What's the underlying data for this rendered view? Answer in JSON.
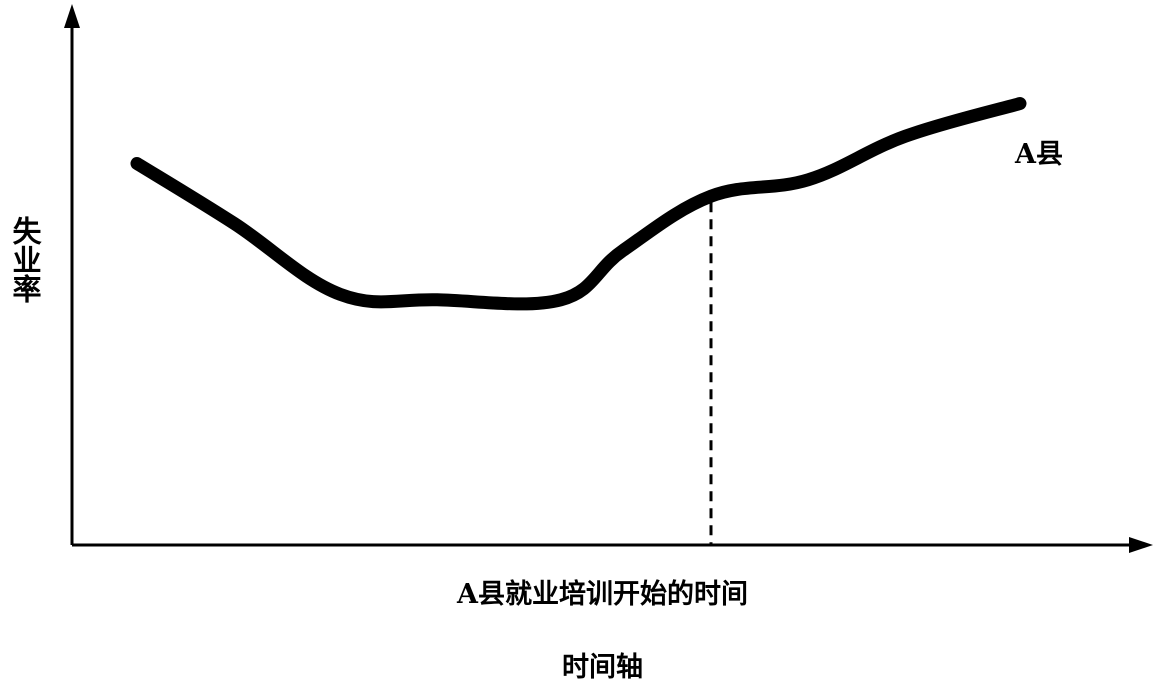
{
  "chart_data": {
    "type": "line",
    "title": "",
    "xlabel": "时间轴",
    "ylabel": "失业率",
    "xlim": [
      0,
      100
    ],
    "ylim": [
      0,
      100
    ],
    "grid": false,
    "series": [
      {
        "name": "A县",
        "x": [
          0,
          11,
          23,
          34,
          48,
          55,
          65,
          76,
          87,
          100
        ],
        "y": [
          70,
          59,
          46,
          45,
          45,
          54,
          64,
          67,
          75,
          81
        ]
      }
    ],
    "annotations": [
      {
        "type": "vline",
        "x": 65,
        "label": "A县就业培训开始的时间"
      }
    ],
    "colors": {
      "line": "#000000",
      "axis": "#000000"
    }
  }
}
